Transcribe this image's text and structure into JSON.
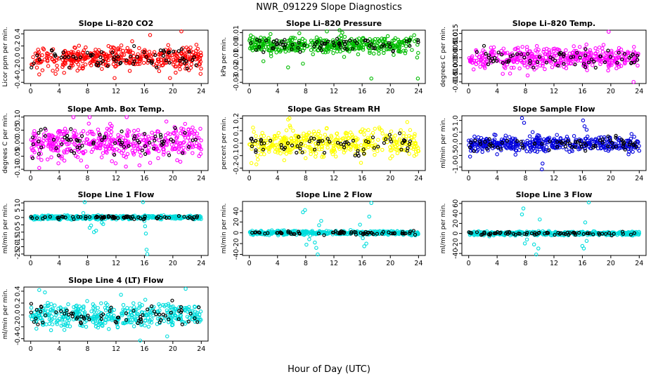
{
  "figure": {
    "title": "NWR_091229  Slope Diagnostics",
    "xlabel": "Hour of Day (UTC)"
  },
  "chart_data": [
    {
      "id": "co2",
      "type": "scatter",
      "title": "Slope Li–820 CO2",
      "ylabel": "Licor ppm per min.",
      "xlim": [
        0,
        24
      ],
      "ylim": [
        -0.42,
        0.46
      ],
      "yticks": [
        -0.4,
        -0.2,
        0.0,
        0.2,
        0.4
      ],
      "ytick_labels": [
        "-0.4",
        "-0.2",
        "0.0",
        "0.2",
        "0.4"
      ],
      "xticks": [
        0,
        4,
        8,
        12,
        16,
        20,
        24
      ],
      "color": "#ff0000",
      "spread": 0.13,
      "seed": 11,
      "outliers": [
        [
          1.2,
          -0.27
        ],
        [
          3.5,
          -0.26
        ],
        [
          11.8,
          -0.33
        ],
        [
          19.6,
          -0.33
        ],
        [
          20.4,
          -0.24
        ],
        [
          16.8,
          0.38
        ],
        [
          21.2,
          0.44
        ],
        [
          23.9,
          -0.26
        ]
      ]
    },
    {
      "id": "press",
      "type": "scatter",
      "title": "Slope Li–820 Pressure",
      "ylabel": "kPa per min.",
      "xlim": [
        0,
        24
      ],
      "ylim": [
        -0.031,
        0.012
      ],
      "yticks": [
        -0.03,
        -0.02,
        -0.01,
        0.0,
        0.01
      ],
      "ytick_labels": [
        "-0.03",
        "-0.02",
        "-0.01",
        "0.00",
        "0.01"
      ],
      "xticks": [
        0,
        4,
        8,
        12,
        16,
        20,
        24
      ],
      "color": "#00bb00",
      "spread": 0.0045,
      "seed": 23,
      "outliers": [
        [
          2.0,
          -0.013
        ],
        [
          3.1,
          -0.009
        ],
        [
          5.5,
          -0.018
        ],
        [
          7.6,
          -0.015
        ],
        [
          12.8,
          0.012
        ],
        [
          13.2,
          0.01
        ],
        [
          17.3,
          -0.027
        ],
        [
          23.8,
          -0.01
        ],
        [
          23.9,
          -0.027
        ],
        [
          11.0,
          0.011
        ]
      ]
    },
    {
      "id": "temp",
      "type": "scatter",
      "title": "Slope Li–820 Temp.",
      "ylabel": "degrees C per min.",
      "xlim": [
        0,
        24
      ],
      "ylim": [
        -0.016,
        0.017
      ],
      "yticks": [
        -0.015,
        -0.01,
        -0.005,
        0.0,
        0.005,
        0.01,
        0.015
      ],
      "ytick_labels": [
        "-0.015",
        "-0.010",
        "-0.005",
        "0.000",
        "0.005",
        "0.010",
        "0.015"
      ],
      "xticks": [
        0,
        4,
        8,
        12,
        16,
        20,
        24
      ],
      "color": "#ff00ff",
      "spread": 0.0045,
      "seed": 37,
      "outliers": [
        [
          19.7,
          0.016
        ],
        [
          23.2,
          -0.015
        ],
        [
          8.3,
          -0.011
        ],
        [
          4.8,
          -0.01
        ]
      ]
    },
    {
      "id": "box",
      "type": "scatter",
      "title": "Slope Amb. Box Temp.",
      "ylabel": "degrees C per min.",
      "xlim": [
        0,
        24
      ],
      "ylim": [
        -0.105,
        0.105
      ],
      "yticks": [
        -0.1,
        -0.05,
        0.0,
        0.05,
        0.1
      ],
      "ytick_labels": [
        "-0.10",
        "-0.05",
        "0.00",
        "0.05",
        "0.10"
      ],
      "xticks": [
        0,
        4,
        8,
        12,
        16,
        20,
        24
      ],
      "color": "#ff00ff",
      "spread": 0.042,
      "seed": 41,
      "outliers": [
        [
          6.0,
          0.1
        ],
        [
          8.3,
          0.1
        ],
        [
          13.5,
          0.1
        ],
        [
          1.2,
          -0.095
        ],
        [
          7.9,
          -0.09
        ],
        [
          15.3,
          -0.085
        ]
      ]
    },
    {
      "id": "rh",
      "type": "scatter",
      "title": "Slope Gas Stream RH",
      "ylabel": "percent per min.",
      "xlim": [
        0,
        24
      ],
      "ylim": [
        -0.22,
        0.22
      ],
      "yticks": [
        -0.2,
        -0.1,
        0.0,
        0.1,
        0.2
      ],
      "ytick_labels": [
        "-0.2",
        "-0.1",
        "0.0",
        "0.1",
        "0.2"
      ],
      "xticks": [
        0,
        4,
        8,
        12,
        16,
        20,
        24
      ],
      "color": "#ffff00",
      "spread": 0.075,
      "seed": 53,
      "outliers": [
        [
          0.3,
          -0.16
        ],
        [
          1.0,
          -0.17
        ],
        [
          5.7,
          0.2
        ],
        [
          5.5,
          0.19
        ],
        [
          22.4,
          0.17
        ]
      ]
    },
    {
      "id": "sample",
      "type": "scatter",
      "title": "Slope Sample Flow",
      "ylabel": "ml/min per min.",
      "xlim": [
        0,
        24
      ],
      "ylim": [
        -1.15,
        1.2
      ],
      "yticks": [
        -1.0,
        -0.5,
        0.0,
        0.5,
        1.0
      ],
      "ytick_labels": [
        "-1.0",
        "-0.5",
        "0.0",
        "0.5",
        "1.0"
      ],
      "xticks": [
        0,
        4,
        8,
        12,
        16,
        20,
        24
      ],
      "color": "#0000dd",
      "spread": 0.22,
      "seed": 67,
      "outliers": [
        [
          0.2,
          -0.55
        ],
        [
          0.3,
          -0.3
        ],
        [
          4.0,
          -0.45
        ],
        [
          5.2,
          0.35
        ],
        [
          7.5,
          1.1
        ],
        [
          7.8,
          0.9
        ],
        [
          9.0,
          0.5
        ],
        [
          10.3,
          -1.1
        ],
        [
          10.4,
          -0.85
        ],
        [
          16.1,
          1.0
        ],
        [
          16.3,
          0.75
        ],
        [
          16.6,
          0.6
        ],
        [
          22.5,
          -0.45
        ],
        [
          23.3,
          0.3
        ],
        [
          24.0,
          -0.3
        ]
      ]
    },
    {
      "id": "line1",
      "type": "scatter",
      "title": "Slope Line 1 Flow",
      "ylabel": "ml/min per min.",
      "xlim": [
        0,
        24
      ],
      "ylim": [
        -26,
        11
      ],
      "yticks": [
        -25,
        -20,
        -15,
        -10,
        -5,
        0,
        5,
        10
      ],
      "ytick_labels": [
        "-25",
        "-20",
        "-15",
        "-10",
        "-5",
        "0",
        "5",
        "10"
      ],
      "xticks": [
        0,
        4,
        8,
        12,
        16,
        20,
        24
      ],
      "color": "#00dddd",
      "spread": 0.9,
      "seed": 71,
      "outliers": [
        [
          7.4,
          3.0
        ],
        [
          7.6,
          10.5
        ],
        [
          8.3,
          -7.0
        ],
        [
          8.5,
          -5.5
        ],
        [
          8.9,
          -10.0
        ],
        [
          9.2,
          -9.0
        ],
        [
          10.0,
          -3.5
        ],
        [
          10.2,
          -4.5
        ],
        [
          15.8,
          10.5
        ],
        [
          16.0,
          -2.5
        ],
        [
          16.1,
          -6.0
        ],
        [
          16.2,
          -11.0
        ],
        [
          16.3,
          -22.0
        ],
        [
          16.4,
          -25.0
        ]
      ]
    },
    {
      "id": "line2",
      "type": "scatter",
      "title": "Slope Line 2 Flow",
      "ylabel": "ml/min per min.",
      "xlim": [
        0,
        24
      ],
      "ylim": [
        -42,
        58
      ],
      "yticks": [
        -40,
        -20,
        0,
        20,
        40
      ],
      "ytick_labels": [
        "-40",
        "-20",
        "0",
        "20",
        "40"
      ],
      "xticks": [
        0,
        4,
        8,
        12,
        16,
        20,
        24
      ],
      "color": "#00dddd",
      "spread": 2.6,
      "seed": 83,
      "outliers": [
        [
          7.6,
          38
        ],
        [
          7.9,
          42
        ],
        [
          8.1,
          -22
        ],
        [
          8.5,
          -12
        ],
        [
          9.3,
          -18
        ],
        [
          9.5,
          -28
        ],
        [
          9.7,
          -40
        ],
        [
          9.9,
          14
        ],
        [
          10.2,
          22
        ],
        [
          15.7,
          15
        ],
        [
          16.1,
          -10
        ],
        [
          16.3,
          -25
        ],
        [
          16.6,
          -20
        ],
        [
          17.3,
          55
        ],
        [
          17.0,
          30
        ]
      ]
    },
    {
      "id": "line3",
      "type": "scatter",
      "title": "Slope Line 3 Flow",
      "ylabel": "ml/min per min.",
      "xlim": [
        0,
        24
      ],
      "ylim": [
        -44,
        64
      ],
      "yticks": [
        -40,
        -20,
        0,
        20,
        40,
        60
      ],
      "ytick_labels": [
        "-40",
        "-20",
        "0",
        "20",
        "40",
        "60"
      ],
      "xticks": [
        0,
        4,
        8,
        12,
        16,
        20,
        24
      ],
      "color": "#00dddd",
      "spread": 2.6,
      "seed": 97,
      "outliers": [
        [
          7.5,
          38
        ],
        [
          7.7,
          50
        ],
        [
          7.9,
          -20
        ],
        [
          8.2,
          -12
        ],
        [
          9.2,
          -22
        ],
        [
          9.5,
          -42
        ],
        [
          9.8,
          -30
        ],
        [
          10.0,
          28
        ],
        [
          16.0,
          -25
        ],
        [
          16.2,
          -30
        ],
        [
          16.4,
          22
        ],
        [
          16.6,
          -15
        ],
        [
          16.9,
          62
        ]
      ]
    },
    {
      "id": "line4",
      "type": "scatter",
      "title": "Slope Line 4 (LT) Flow",
      "ylabel": "ml/min per min.",
      "xlim": [
        0,
        24
      ],
      "ylim": [
        -0.44,
        0.47
      ],
      "yticks": [
        -0.4,
        -0.2,
        0.0,
        0.2,
        0.4
      ],
      "ytick_labels": [
        "-0.4",
        "-0.2",
        "0.0",
        "0.2",
        "0.4"
      ],
      "xticks": [
        0,
        4,
        8,
        12,
        16,
        20,
        24
      ],
      "color": "#00dddd",
      "spread": 0.14,
      "seed": 101,
      "outliers": [
        [
          1.2,
          0.42
        ],
        [
          2.0,
          0.38
        ],
        [
          15.4,
          -0.43
        ],
        [
          19.2,
          -0.36
        ],
        [
          12.7,
          0.34
        ],
        [
          21.8,
          0.44
        ]
      ]
    }
  ]
}
